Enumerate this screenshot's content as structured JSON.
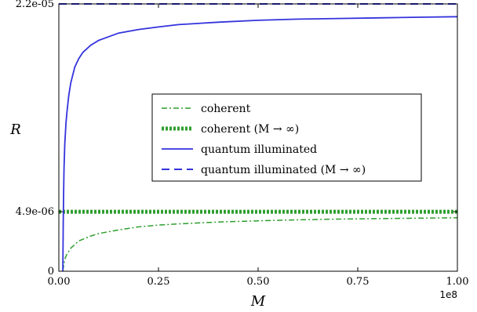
{
  "chart_data": {
    "type": "line",
    "title": "",
    "xlabel": "M",
    "ylabel": "R",
    "x_offset_label": "1e8",
    "xlim": [
      0,
      1.0
    ],
    "ylim": [
      0,
      2.2e-05
    ],
    "xticks": [
      {
        "value": 0.0,
        "label": "0.00"
      },
      {
        "value": 0.25,
        "label": "0.25"
      },
      {
        "value": 0.5,
        "label": "0.50"
      },
      {
        "value": 0.75,
        "label": "0.75"
      },
      {
        "value": 1.0,
        "label": "1.00"
      }
    ],
    "yticks": [
      {
        "value": 0,
        "label": "0"
      },
      {
        "value": 4.9e-06,
        "label": "4.9e-06"
      },
      {
        "value": 2.2e-05,
        "label": "2.2e-05"
      }
    ],
    "grid": false,
    "legend_position": "center-right",
    "legend": [
      {
        "label": "coherent",
        "color": "#2e9e2e",
        "style": "dashdot"
      },
      {
        "label": "coherent (M → ∞)",
        "color": "#2e9e2e",
        "style": "dotted-thick"
      },
      {
        "label": "quantum illuminated",
        "color": "#3333dd",
        "style": "solid"
      },
      {
        "label": "quantum illuminated (M → ∞)",
        "color": "#3333dd",
        "style": "dashed"
      }
    ],
    "series": [
      {
        "name": "coherent",
        "color": "#2e9e2e",
        "style": "dashdot",
        "x": [
          0.01,
          0.015,
          0.02,
          0.03,
          0.05,
          0.08,
          0.1,
          0.15,
          0.2,
          0.25,
          0.3,
          0.4,
          0.5,
          0.6,
          0.7,
          0.8,
          0.9,
          1.0
        ],
        "y": [
          5e-08,
          1e-06,
          1.4e-06,
          1.9e-06,
          2.5e-06,
          2.9e-06,
          3.1e-06,
          3.4e-06,
          3.65e-06,
          3.8e-06,
          3.9e-06,
          4.05e-06,
          4.15e-06,
          4.23e-06,
          4.29e-06,
          4.33e-06,
          4.37e-06,
          4.4e-06
        ]
      },
      {
        "name": "coherent (M → ∞)",
        "color": "#2e9e2e",
        "style": "dotted-thick",
        "x": [
          0.0,
          1.0
        ],
        "y": [
          4.9e-06,
          4.9e-06
        ]
      },
      {
        "name": "quantum illuminated",
        "color": "#3333dd",
        "style": "solid",
        "x": [
          0.01,
          0.011,
          0.012,
          0.013,
          0.015,
          0.018,
          0.02,
          0.025,
          0.03,
          0.04,
          0.05,
          0.06,
          0.08,
          0.1,
          0.15,
          0.2,
          0.25,
          0.3,
          0.4,
          0.5,
          0.6,
          0.7,
          0.8,
          0.9,
          1.0
        ],
        "y": [
          0.0,
          4e-06,
          6.5e-06,
          8.5e-06,
          1.05e-05,
          1.22e-05,
          1.3e-05,
          1.45e-05,
          1.55e-05,
          1.68e-05,
          1.75e-05,
          1.8e-05,
          1.86e-05,
          1.9e-05,
          1.96e-05,
          1.99e-05,
          2.01e-05,
          2.03e-05,
          2.05e-05,
          2.065e-05,
          2.075e-05,
          2.08e-05,
          2.085e-05,
          2.09e-05,
          2.095e-05
        ]
      },
      {
        "name": "quantum illuminated (M → ∞)",
        "color": "#3333dd",
        "style": "dashed",
        "x": [
          0.0,
          1.0
        ],
        "y": [
          2.2e-05,
          2.2e-05
        ]
      }
    ]
  }
}
